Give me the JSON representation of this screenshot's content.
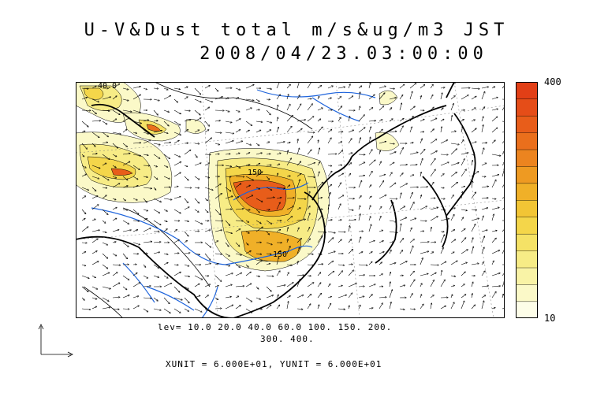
{
  "title": {
    "line1": "U-V&Dust total m/s&ug/m3 JST",
    "line2": "2008/04/23.03:00:00"
  },
  "map": {
    "contour_labels": [
      "40.0",
      "150",
      "150"
    ]
  },
  "colorbar": {
    "max_label": "400",
    "min_label": "10",
    "colors": [
      "#fdfde8",
      "#fbf9c8",
      "#f9f3a6",
      "#f7ec86",
      "#f5e266",
      "#f4d64a",
      "#f2c535",
      "#f0b028",
      "#ee9a22",
      "#ec841f",
      "#ea6f1c",
      "#e85d1a",
      "#e54d18",
      "#e23f16"
    ]
  },
  "legend": {
    "lev_line1": "lev= 10.0 20.0 40.0 60.0 100. 150. 200.",
    "lev_line2": "300. 400.",
    "units": "XUNIT = 6.000E+01, YUNIT = 6.000E+01"
  }
}
